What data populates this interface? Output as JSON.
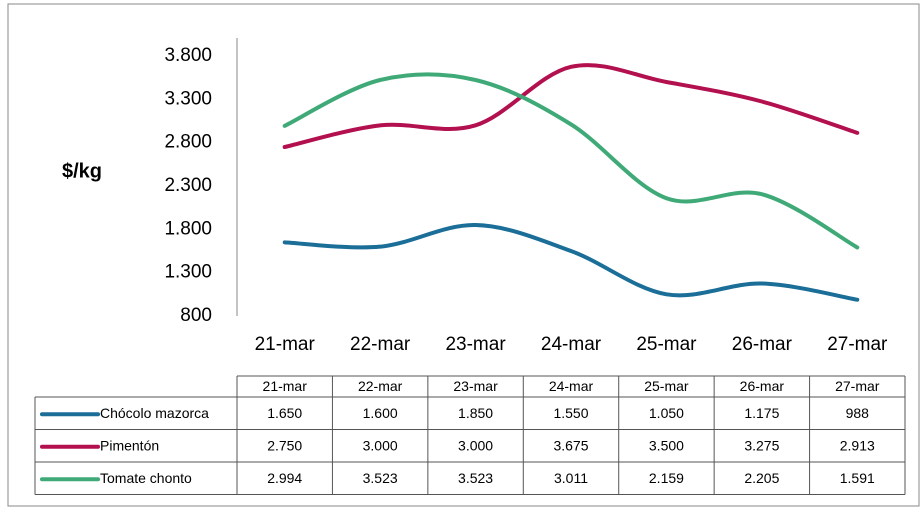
{
  "chart_data": {
    "type": "line",
    "y_label": "$/kg",
    "categories": [
      "21-mar",
      "22-mar",
      "23-mar",
      "24-mar",
      "25-mar",
      "26-mar",
      "27-mar"
    ],
    "series": [
      {
        "name": "Chócolo mazorca",
        "color": "#1a6e98",
        "values": [
          1650,
          1600,
          1850,
          1550,
          1050,
          1175,
          988
        ],
        "value_labels": [
          "1.650",
          "1.600",
          "1.850",
          "1.550",
          "1.050",
          "1.175",
          "988"
        ]
      },
      {
        "name": "Pimentón",
        "color": "#b3104f",
        "values": [
          2750,
          3000,
          3000,
          3675,
          3500,
          3275,
          2913
        ],
        "value_labels": [
          "2.750",
          "3.000",
          "3.000",
          "3.675",
          "3.500",
          "3.275",
          "2.913"
        ]
      },
      {
        "name": "Tomate chonto",
        "color": "#3faa78",
        "values": [
          2994,
          3523,
          3523,
          3011,
          2159,
          2205,
          1591
        ],
        "value_labels": [
          "2.994",
          "3.523",
          "3.523",
          "3.011",
          "2.159",
          "2.205",
          "1.591"
        ]
      }
    ],
    "ylim": [
      800,
      3800
    ],
    "yticks": [
      {
        "value": 800,
        "label": "800"
      },
      {
        "value": 1300,
        "label": "1.300"
      },
      {
        "value": 1800,
        "label": "1.800"
      },
      {
        "value": 2300,
        "label": "2.300"
      },
      {
        "value": 2800,
        "label": "2.800"
      },
      {
        "value": 3300,
        "label": "3.300"
      },
      {
        "value": 3800,
        "label": "3.800"
      }
    ],
    "grid": false,
    "data_table": true
  }
}
